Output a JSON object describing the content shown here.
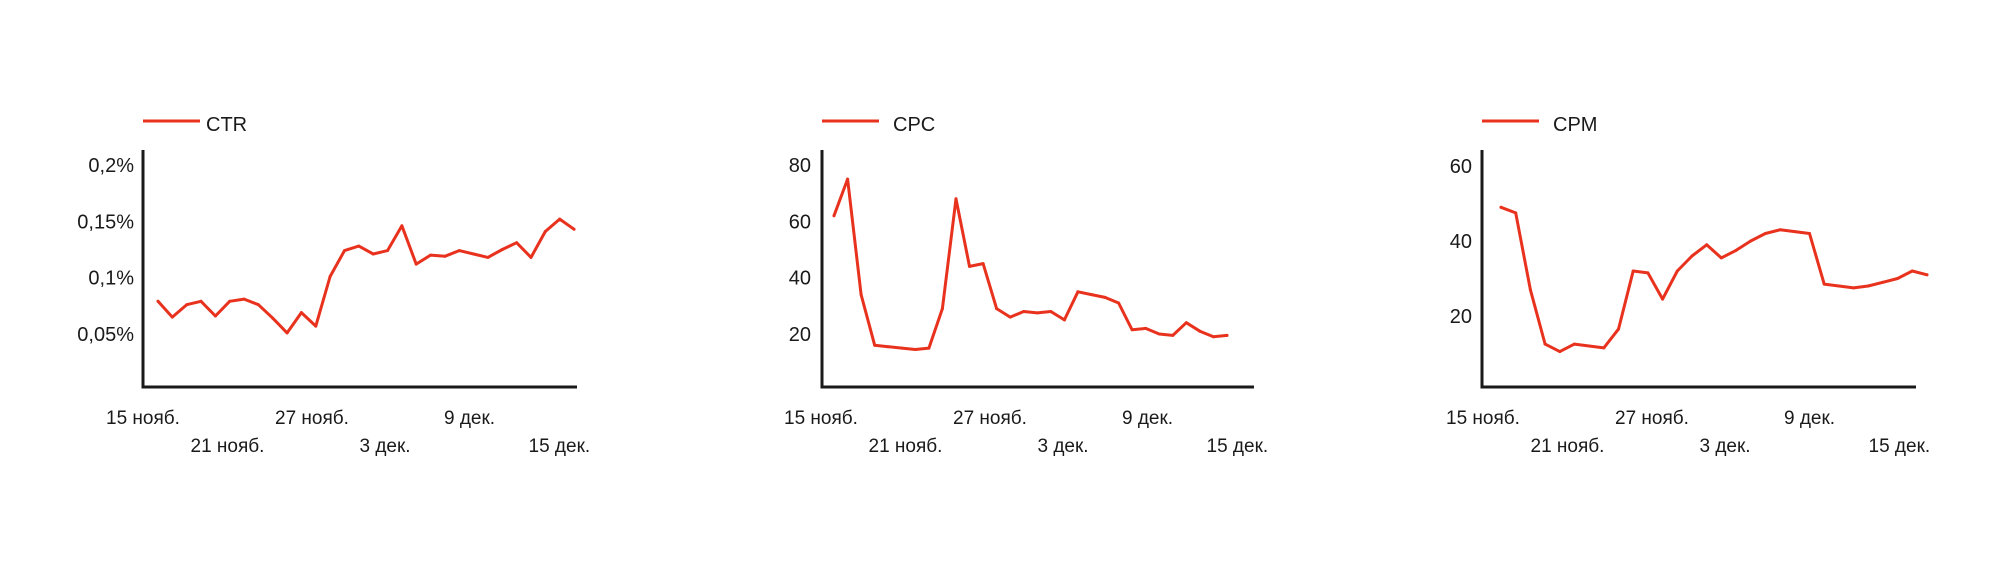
{
  "colors": {
    "line": "#e8321e",
    "axis": "#1a1a1a",
    "text": "#1a1a1a"
  },
  "chart_data": [
    {
      "type": "line",
      "series": [
        {
          "name": "CTR"
        }
      ],
      "x_tick_labels": [
        "15 нояб.",
        "21 нояб.",
        "27 нояб.",
        "3 дек.",
        "9 дек.",
        "15 дек."
      ],
      "x_range": [
        "15 нояб.",
        "15 дек."
      ],
      "y_ticks": [
        0.05,
        0.1,
        0.15,
        0.2
      ],
      "y_tick_labels": [
        "0,05%",
        "0,1%",
        "0,15%",
        "0,2%"
      ],
      "ylim": [
        0,
        0.21
      ],
      "y_unit": "%",
      "grid": false,
      "legend": "top-left",
      "values": [
        0.079,
        0.065,
        0.076,
        0.079,
        0.066,
        0.079,
        0.081,
        0.076,
        0.064,
        0.051,
        0.069,
        0.057,
        0.101,
        0.124,
        0.128,
        0.121,
        0.124,
        0.146,
        0.112,
        0.12,
        0.119,
        0.124,
        0.121,
        0.118,
        0.125,
        0.131,
        0.118,
        0.141,
        0.152,
        0.143
      ]
    },
    {
      "type": "line",
      "series": [
        {
          "name": "CPC"
        }
      ],
      "x_tick_labels": [
        "15 нояб.",
        "21 нояб.",
        "27 нояб.",
        "3 дек.",
        "9 дек.",
        "15 дек."
      ],
      "x_range": [
        "15 нояб.",
        "15 дек."
      ],
      "y_ticks": [
        20,
        40,
        60,
        80
      ],
      "y_tick_labels": [
        "20",
        "40",
        "60",
        "80"
      ],
      "ylim": [
        0,
        85
      ],
      "grid": false,
      "legend": "top-left",
      "values": [
        62,
        75,
        34,
        16,
        15.5,
        15,
        14.5,
        15,
        29,
        68,
        44,
        45,
        29,
        26,
        28,
        27.5,
        28,
        25,
        35,
        34,
        33,
        31,
        21.5,
        22,
        20,
        19.5,
        24,
        21,
        19,
        19.5
      ]
    },
    {
      "type": "line",
      "series": [
        {
          "name": "CPM"
        }
      ],
      "x_tick_labels": [
        "15 нояб.",
        "21 нояб.",
        "27 нояб.",
        "3 дек.",
        "9 дек.",
        "15 дек."
      ],
      "x_range": [
        "15 нояб.",
        "15 дек."
      ],
      "y_ticks": [
        20,
        40,
        60
      ],
      "y_tick_labels": [
        "20",
        "40",
        "60"
      ],
      "ylim": [
        0,
        65
      ],
      "grid": false,
      "legend": "top-left",
      "values": [
        49,
        47.5,
        27,
        12.5,
        10.5,
        12.5,
        12,
        11.5,
        16.5,
        32,
        31.5,
        24.5,
        32,
        36,
        39,
        35.5,
        37.5,
        40,
        42,
        43,
        42.5,
        42,
        28.5,
        28,
        27.5,
        28,
        29,
        30,
        32,
        31
      ]
    }
  ]
}
